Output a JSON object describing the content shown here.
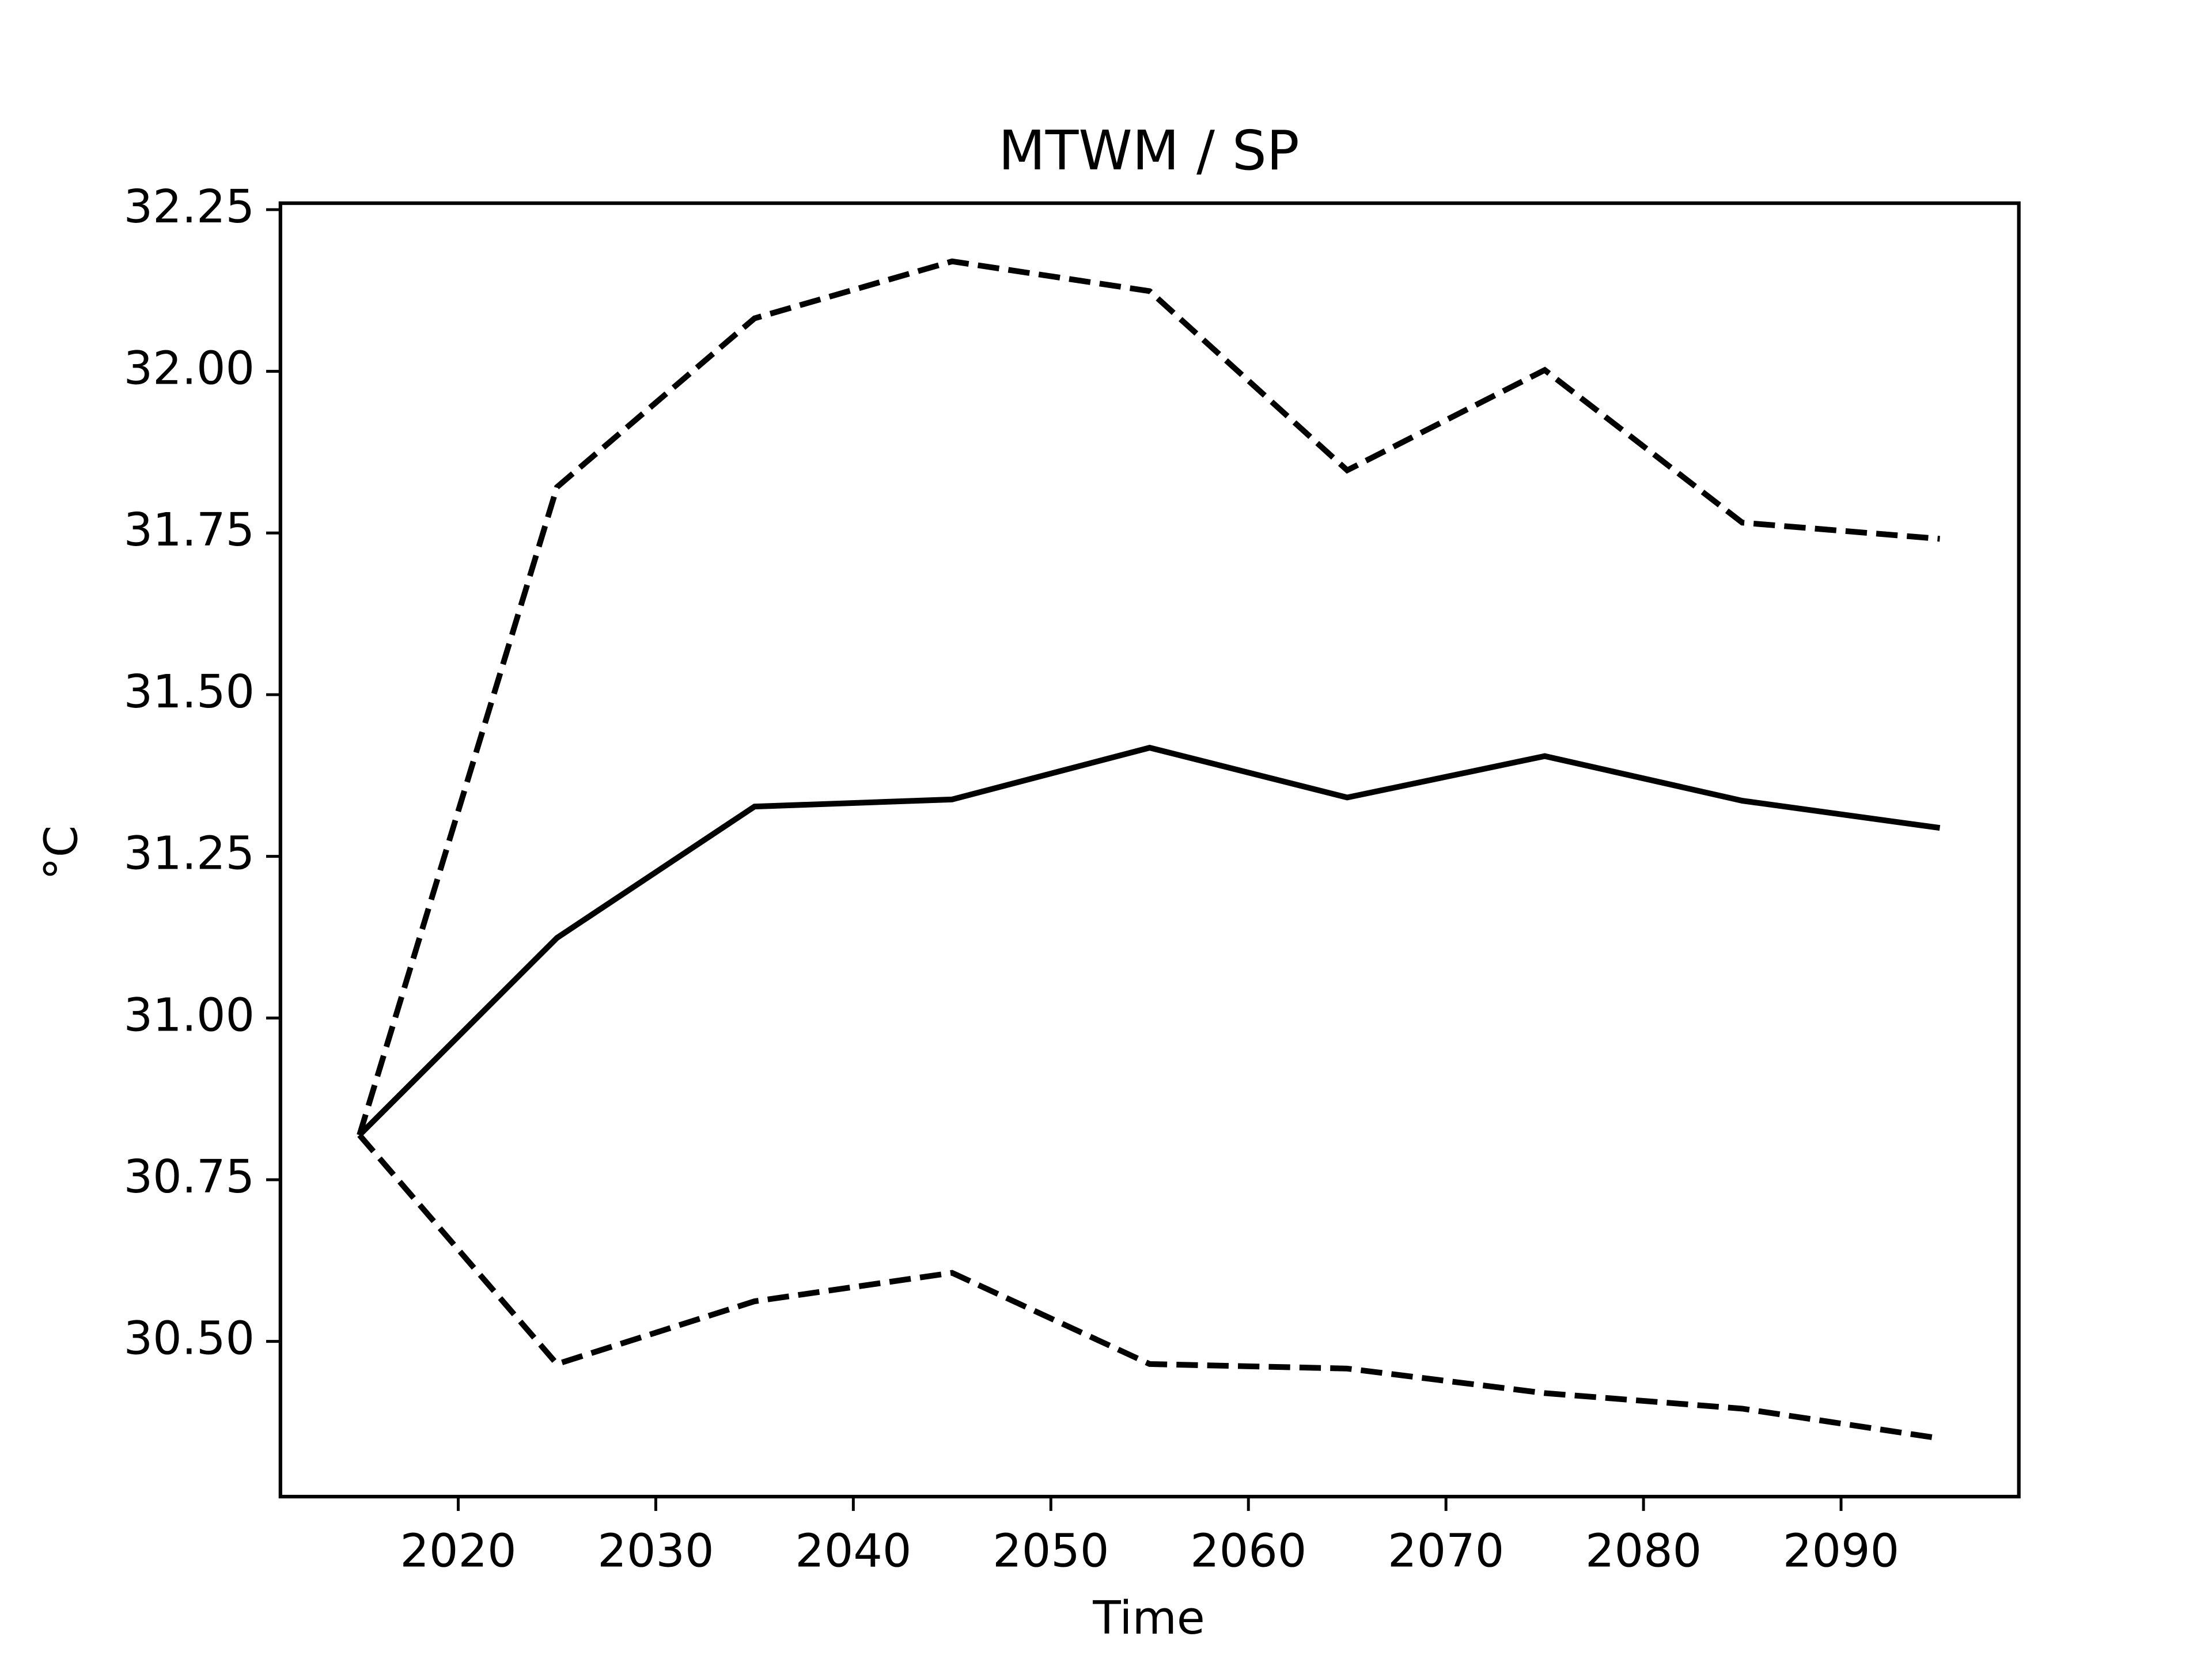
{
  "chart_data": {
    "type": "line",
    "title": "MTWM / SP",
    "xlabel": "Time",
    "ylabel": "°C",
    "x": [
      2015,
      2025,
      2035,
      2045,
      2055,
      2065,
      2075,
      2085,
      2095
    ],
    "series": [
      {
        "color": "#000000",
        "linestyle": "solid",
        "values": [
          30.819,
          31.124,
          31.327,
          31.338,
          31.418,
          31.341,
          31.405,
          31.336,
          31.294
        ]
      },
      {
        "color": "#000000",
        "linestyle": "dashed",
        "values": [
          30.819,
          31.821,
          32.082,
          32.17,
          32.124,
          31.847,
          32.002,
          31.766,
          31.741
        ]
      },
      {
        "color": "#000000",
        "linestyle": "dashed",
        "values": [
          30.819,
          30.465,
          30.562,
          30.606,
          30.465,
          30.458,
          30.42,
          30.396,
          30.35
        ]
      }
    ],
    "xlim": [
      2011,
      2099
    ],
    "ylim": [
      30.26,
      32.26
    ],
    "xticks": [
      2020,
      2030,
      2040,
      2050,
      2060,
      2070,
      2080,
      2090
    ],
    "yticks": [
      {
        "value": 30.5,
        "label": "30.50"
      },
      30.75,
      {
        "value": 31.0,
        "label": "31.00"
      },
      31.25,
      {
        "value": 31.5,
        "label": "31.50"
      },
      31.75,
      {
        "value": 32.0,
        "label": "32.00"
      },
      32.25
    ],
    "grid": false
  }
}
